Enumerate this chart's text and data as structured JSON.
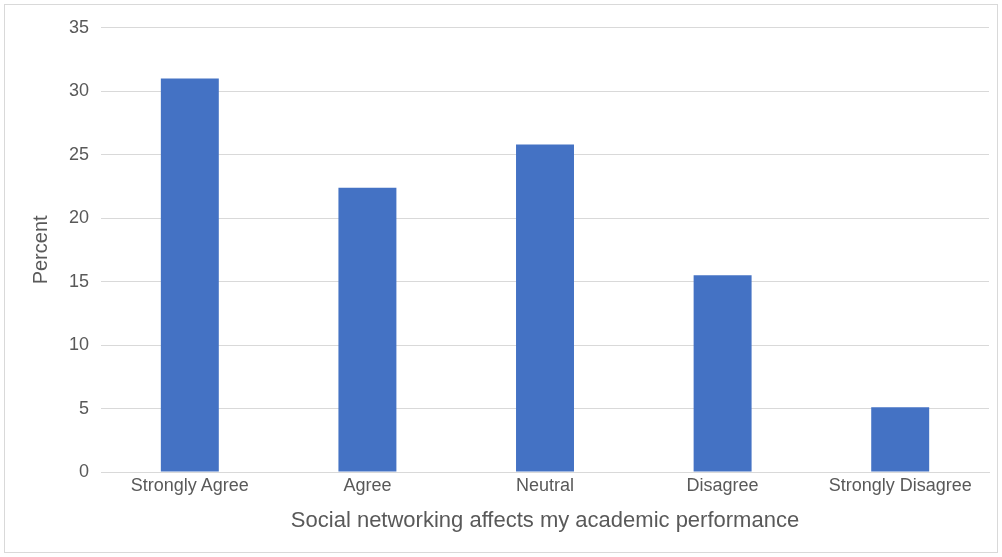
{
  "chart_data": {
    "type": "bar",
    "xlabel": "Social networking affects my academic performance",
    "ylabel": "Percent",
    "categories": [
      "Strongly Agree",
      "Agree",
      "Neutral",
      "Disagree",
      "Strongly Disagree"
    ],
    "values": [
      31,
      22.4,
      25.8,
      15.5,
      5.1
    ],
    "color": "#4472c4",
    "ylim": [
      0,
      35
    ],
    "yticks": [
      0,
      5,
      10,
      15,
      20,
      25,
      30,
      35
    ],
    "grid": "y",
    "legend": false
  }
}
